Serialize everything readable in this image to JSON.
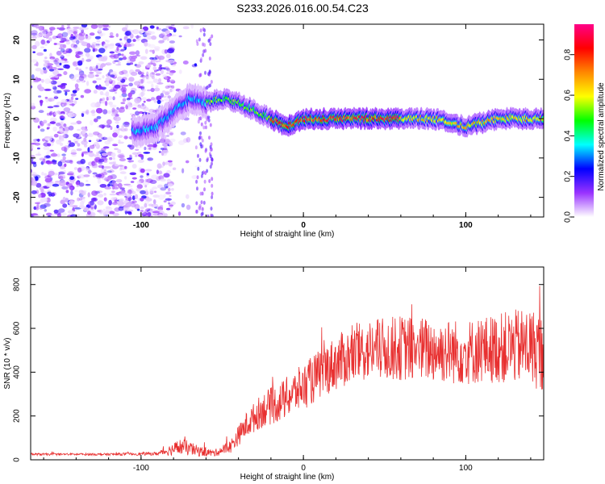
{
  "title": "S233.2026.016.00.54.C23",
  "chart_data": [
    {
      "type": "heatmap",
      "description_text": "",
      "xlabel": "Height of straight line (km)",
      "ylabel": "Frequency (Hz)",
      "xlim": [
        -168,
        148
      ],
      "ylim": [
        -25,
        24
      ],
      "xticks": [
        -100,
        0,
        100
      ],
      "xtick_labels": [
        "-100",
        "0",
        "100"
      ],
      "yticks": [
        -20,
        -10,
        0,
        10,
        20
      ],
      "ytick_labels": [
        "-20",
        "-10",
        "0",
        "10",
        "20"
      ],
      "colorbar": {
        "label": "Normalized spectral amplitude",
        "range": [
          0,
          0.95
        ],
        "ticks": [
          0,
          0.2,
          0.4,
          0.6,
          0.8
        ],
        "tick_labels": [
          "0.0",
          "0.2",
          "0.4",
          "0.6",
          "0.8"
        ],
        "colors": [
          "#ffffff",
          "#9933ff",
          "#0000ff",
          "#00ffff",
          "#00ff00",
          "#ffff00",
          "#ff8800",
          "#ff0000",
          "#ff0088"
        ]
      },
      "ridge": {
        "x": [
          -100,
          -90,
          -80,
          -70,
          -60,
          -50,
          -40,
          -30,
          -20,
          -10,
          0,
          20,
          40,
          60,
          80,
          100,
          120,
          140,
          148
        ],
        "freq": [
          -3,
          -2,
          2,
          5,
          4,
          5,
          4,
          2,
          0,
          -2,
          0,
          0,
          0,
          0,
          0,
          -2,
          0,
          0,
          0
        ]
      }
    },
    {
      "type": "line",
      "xlabel": "Height of straight line (km)",
      "ylabel": "SNR (10 * v/v)",
      "xlim": [
        -168,
        148
      ],
      "ylim": [
        0,
        880
      ],
      "xticks": [
        -100,
        0,
        100
      ],
      "xtick_labels": [
        "-100",
        "0",
        "100"
      ],
      "yticks": [
        0,
        200,
        400,
        600,
        800
      ],
      "ytick_labels": [
        "0",
        "200",
        "400",
        "600",
        "800"
      ],
      "series": [
        {
          "name": "SNR",
          "color": "#e83030",
          "trend_x": [
            -168,
            -120,
            -90,
            -75,
            -65,
            -55,
            -45,
            -35,
            -25,
            -15,
            -5,
            5,
            15,
            25,
            40,
            60,
            80,
            100,
            120,
            140,
            148
          ],
          "trend_y": [
            25,
            25,
            28,
            60,
            40,
            30,
            60,
            160,
            230,
            260,
            310,
            360,
            420,
            460,
            500,
            510,
            500,
            490,
            510,
            520,
            480
          ],
          "noise_y": [
            5,
            5,
            8,
            40,
            25,
            15,
            30,
            60,
            80,
            90,
            100,
            110,
            120,
            130,
            140,
            150,
            150,
            150,
            160,
            180,
            180
          ]
        }
      ]
    }
  ]
}
